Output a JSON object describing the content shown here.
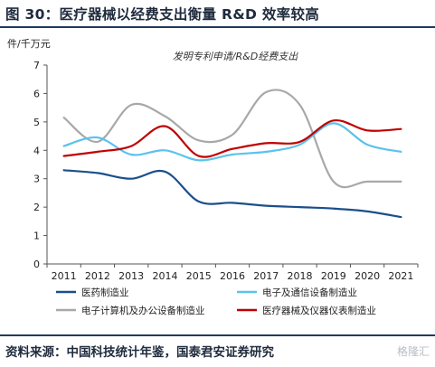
{
  "header": {
    "title": "图 30：医疗器械以经费支出衡量 R&D 效率较高"
  },
  "footer": {
    "source": "资料来源：中国科技统计年鉴，国泰君安证券研究",
    "watermark": "格隆汇"
  },
  "chart_data": {
    "type": "line",
    "title": "发明专利申请/R&D经费支出",
    "ylabel": "件/千万元",
    "xlabel": "",
    "x": [
      "2011",
      "2012",
      "2013",
      "2014",
      "2015",
      "2016",
      "2017",
      "2018",
      "2019",
      "2020",
      "2021"
    ],
    "ylim": [
      0,
      7
    ],
    "yticks": [
      0,
      1,
      2,
      3,
      4,
      5,
      6,
      7
    ],
    "grid": false,
    "legend_position": "bottom",
    "series": [
      {
        "name": "医药制造业",
        "color": "#1a4f8b",
        "values": [
          3.3,
          3.2,
          3.0,
          3.25,
          2.2,
          2.15,
          2.05,
          2.0,
          1.95,
          1.85,
          1.65
        ]
      },
      {
        "name": "电子及通信设备制造业",
        "color": "#5bc2ec",
        "values": [
          4.15,
          4.45,
          3.85,
          4.0,
          3.65,
          3.85,
          3.95,
          4.2,
          4.95,
          4.2,
          3.95
        ]
      },
      {
        "name": "电子计算机及办公设备制造业",
        "color": "#a8a8a8",
        "values": [
          5.15,
          4.3,
          5.6,
          5.2,
          4.35,
          4.55,
          6.05,
          5.6,
          2.9,
          2.9,
          2.9
        ]
      },
      {
        "name": "医疗器械及仪器仪表制造业",
        "color": "#c00000",
        "values": [
          3.8,
          3.95,
          4.15,
          4.85,
          3.8,
          4.05,
          4.25,
          4.3,
          5.05,
          4.7,
          4.75
        ]
      }
    ]
  }
}
